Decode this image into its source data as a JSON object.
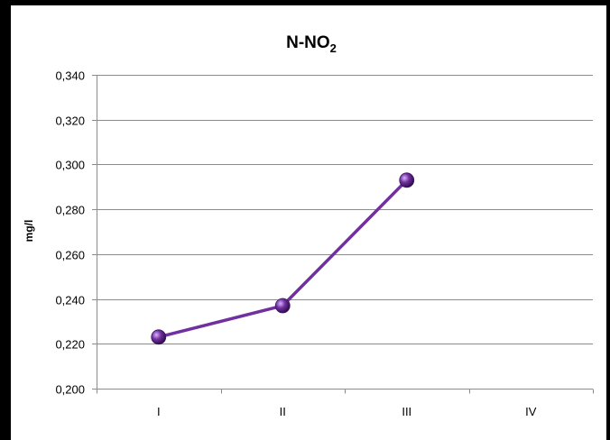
{
  "chart_data": {
    "type": "line",
    "title": "N-NO",
    "title_subscript": "2",
    "xlabel": "",
    "ylabel": "mg/l",
    "categories": [
      "I",
      "II",
      "III",
      "IV"
    ],
    "series": [
      {
        "values": [
          0.223,
          0.237,
          0.293,
          null
        ],
        "color": "#7030a0"
      }
    ],
    "ylim": [
      0.2,
      0.34
    ],
    "yticks": [
      0.2,
      0.22,
      0.24,
      0.26,
      0.28,
      0.3,
      0.32,
      0.34
    ],
    "ytick_labels": [
      "0,200",
      "0,220",
      "0,240",
      "0,260",
      "0,280",
      "0,300",
      "0,320",
      "0,340"
    ],
    "grid": true,
    "legend": "none"
  }
}
